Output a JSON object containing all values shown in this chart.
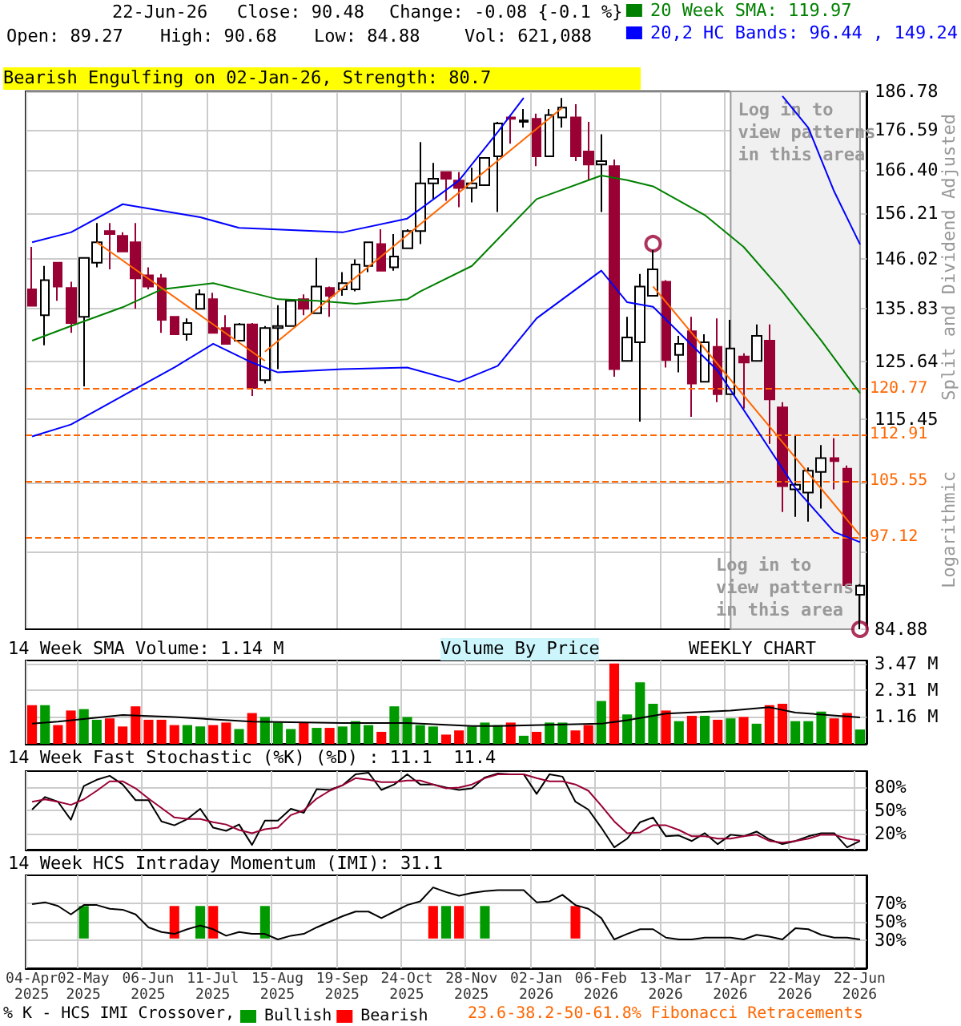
{
  "chart_data": [
    {
      "type": "candlestick",
      "ylabel": "Split and Dividend Adjusted",
      "log": true,
      "grid": true,
      "tick_labels": "y",
      "legend": "top right",
      "annotations": [
        "22-Jun-26",
        "Close: 90.48",
        "Change: -0.08 {-0.1 %}",
        "Open: 89.27",
        "High: 90.68",
        "Low: 84.88",
        "Vol: 621,088",
        "Bearish Engulfing on 02-Jan-26, Strength: 80.7",
        "Log in to\nview patterns\nin this area",
        "Logarithmic"
      ],
      "categories": [
        "04-Apr\n2025",
        null,
        null,
        null,
        "02-May\n2025",
        null,
        null,
        null,
        null,
        "06-Jun\n2025",
        null,
        null,
        null,
        null,
        "11-Jul\n2025",
        null,
        null,
        null,
        null,
        "15-Aug\n2025",
        null,
        null,
        null,
        null,
        "19-Sep\n2025",
        null,
        null,
        null,
        null,
        "24-Oct\n2025",
        null,
        null,
        null,
        null,
        "28-Nov\n2025",
        null,
        null,
        null,
        null,
        "02-Jan\n2026",
        null,
        null,
        null,
        null,
        "06-Feb\n2026",
        null,
        null,
        null,
        null,
        "13-Mar\n2026",
        null,
        null,
        null,
        null,
        "17-Apr\n2026",
        null,
        null,
        null,
        null,
        "22-May\n2026",
        null,
        null,
        null,
        null,
        "22-Jun\n2026"
      ],
      "ylim": [
        84.88,
        186.78
      ],
      "yticks": [
        186.78,
        176.59,
        {
          "value": 166.4,
          "label": "166.40"
        },
        156.21,
        146.02,
        135.83,
        125.64,
        115.45,
        {
          "value": 105.26,
          "label": null
        },
        {
          "value": 95.07,
          "label": null
        },
        84.88
      ],
      "ref_lines": [
        {
          "axis": "y",
          "value": 120.77,
          "label": "120.77",
          "color": "#ff6600",
          "line_style": "dashed"
        },
        {
          "axis": "y",
          "value": 112.91,
          "label": "112.91",
          "color": "#ff6600",
          "line_style": "dashed"
        },
        {
          "axis": "y",
          "value": 105.55,
          "label": "105.55",
          "color": "#ff6600",
          "line_style": "dashed"
        },
        {
          "axis": "y",
          "value": 97.12,
          "label": "97.12",
          "color": "#ff6600",
          "line_style": "dashed"
        }
      ],
      "bands": [
        {
          "axis": "x",
          "from": "17-Apr\n2026",
          "to": "22-Jun\n2026",
          "label": "Log in to\nview patterns\nin this area",
          "color": "#f0f0f0"
        }
      ],
      "series": [
        {
          "colors": [
            "#990033",
            "#ffffff",
            "#990033",
            "#990033",
            "#ffffff",
            "#ffffff",
            "#990033",
            "#990033",
            "#990033",
            "#990033",
            "#990033",
            "#990033",
            "#ffffff",
            "#ffffff",
            "#990033",
            "#990033",
            "#ffffff",
            "#990033",
            "#ffffff",
            "#ffffff",
            "#ffffff",
            "#990033",
            "#ffffff",
            "#990033",
            "#ffffff",
            "#ffffff",
            "#ffffff",
            "#990033",
            "#ffffff",
            "#ffffff",
            "#ffffff",
            "#ffffff",
            "#990033",
            "#990033",
            "#ffffff",
            "#ffffff",
            "#ffffff",
            "#990033",
            "#ffffff",
            "#990033",
            "#ffffff",
            "#ffffff",
            "#990033",
            "#990033",
            "#ffffff",
            "#990033",
            "#ffffff",
            "#ffffff",
            "#ffffff",
            "#990033",
            "#ffffff",
            "#990033",
            "#ffffff",
            "#990033",
            "#ffffff",
            "#990033",
            "#ffffff",
            "#990033",
            "#990033",
            "#ffffff",
            "#ffffff",
            "#ffffff",
            "#990033",
            "#990033",
            "#ffffff"
          ],
          "ohlc": [
            [
              139.7,
              148.7,
              136.4,
              136.4
            ],
            [
              134.5,
              144.6,
              128.7,
              141.6
            ],
            [
              145.3,
              145.3,
              137.4,
              140.3
            ],
            [
              140.0,
              141.3,
              131.1,
              133.0
            ],
            [
              134.2,
              146.3,
              121.2,
              146.3
            ],
            [
              145.3,
              154.0,
              144.3,
              149.7
            ],
            [
              152.2,
              154.0,
              143.9,
              151.5
            ],
            [
              151.1,
              151.9,
              147.7,
              147.7
            ],
            [
              149.7,
              154.0,
              135.8,
              142.0
            ],
            [
              142.6,
              144.3,
              139.7,
              140.3
            ],
            [
              142.0,
              142.9,
              131.1,
              133.6
            ],
            [
              134.2,
              134.2,
              130.8,
              130.8
            ],
            [
              130.8,
              133.9,
              129.6,
              133.0
            ],
            [
              135.8,
              139.7,
              135.8,
              138.7
            ],
            [
              137.7,
              139.0,
              131.1,
              131.1
            ],
            [
              132.0,
              134.5,
              129.0,
              129.0
            ],
            [
              129.6,
              133.0,
              129.6,
              132.7
            ],
            [
              132.7,
              133.0,
              119.5,
              120.9
            ],
            [
              122.3,
              132.4,
              121.7,
              132.0
            ],
            [
              132.0,
              136.5,
              124.3,
              132.4
            ],
            [
              132.4,
              137.7,
              132.4,
              137.4
            ],
            [
              137.7,
              138.7,
              134.5,
              135.8
            ],
            [
              134.9,
              146.3,
              134.9,
              140.3
            ],
            [
              140.0,
              140.3,
              134.2,
              138.4
            ],
            [
              139.7,
              143.3,
              138.4,
              141.0
            ],
            [
              139.7,
              146.0,
              139.3,
              144.9
            ],
            [
              144.6,
              149.7,
              143.3,
              149.7
            ],
            [
              149.3,
              152.6,
              143.6,
              143.6
            ],
            [
              144.3,
              151.5,
              143.6,
              146.6
            ],
            [
              148.4,
              152.6,
              148.4,
              152.2
            ],
            [
              152.2,
              173.4,
              149.3,
              163.2
            ],
            [
              163.2,
              168.2,
              159.5,
              164.3
            ],
            [
              165.9,
              165.9,
              159.1,
              164.3
            ],
            [
              163.9,
              165.9,
              157.6,
              162.1
            ],
            [
              162.1,
              167.0,
              158.7,
              163.2
            ],
            [
              162.8,
              169.4,
              162.8,
              169.4
            ],
            [
              169.8,
              178.6,
              156.5,
              178.2
            ],
            [
              179.8,
              180.4,
              173.0,
              179.4
            ],
            [
              178.6,
              182.0,
              177.1,
              179.0
            ],
            [
              179.4,
              180.8,
              167.4,
              169.8
            ],
            [
              169.8,
              182.0,
              169.8,
              180.4
            ],
            [
              179.8,
              185.0,
              177.1,
              182.4
            ],
            [
              179.8,
              183.3,
              168.6,
              169.8
            ],
            [
              171.0,
              178.6,
              164.0,
              167.8
            ],
            [
              167.8,
              175.4,
              156.5,
              168.6
            ],
            [
              167.4,
              169.0,
              122.9,
              124.3
            ],
            [
              125.8,
              134.2,
              125.8,
              130.2
            ],
            [
              129.3,
              142.9,
              115.1,
              140.3
            ],
            [
              138.4,
              148.0,
              138.4,
              143.9
            ],
            [
              141.3,
              141.6,
              124.6,
              126.0
            ],
            [
              126.9,
              130.5,
              123.7,
              129.0
            ],
            [
              131.4,
              134.2,
              115.9,
              121.7
            ],
            [
              122.0,
              130.8,
              122.0,
              129.3
            ],
            [
              128.4,
              133.9,
              118.4,
              119.8
            ],
            [
              119.8,
              133.6,
              119.8,
              128.1
            ],
            [
              126.6,
              127.2,
              117.3,
              125.5
            ],
            [
              125.8,
              132.7,
              125.8,
              130.5
            ],
            [
              129.6,
              132.7,
              111.4,
              118.9
            ],
            [
              117.5,
              118.4,
              100.8,
              104.7
            ],
            [
              104.2,
              112.8,
              100.1,
              104.9
            ],
            [
              103.7,
              107.6,
              99.4,
              107.1
            ],
            [
              106.9,
              111.2,
              101.3,
              109.1
            ],
            [
              109.1,
              112.3,
              104.2,
              108.6
            ],
            [
              107.4,
              107.9,
              90.56,
              90.56
            ],
            [
              89.27,
              90.68,
              84.88,
              90.48
            ]
          ]
        },
        {
          "type": "line",
          "name": "20 Week SMA: 119.97",
          "color": "#008000",
          "values": [
            129.6,
            null,
            null,
            132.4,
            null,
            null,
            null,
            136.1,
            null,
            null,
            139.7,
            null,
            null,
            null,
            141.0,
            null,
            null,
            139.0,
            null,
            137.7,
            null,
            null,
            137.4,
            null,
            null,
            136.8,
            null,
            null,
            null,
            137.7,
            139.3,
            null,
            null,
            null,
            144.6,
            null,
            null,
            null,
            null,
            159.5,
            null,
            null,
            null,
            null,
            165.1,
            null,
            164.0,
            null,
            162.5,
            null,
            null,
            null,
            155.8,
            null,
            null,
            148.7,
            null,
            null,
            139.3,
            null,
            null,
            129.6,
            null,
            null,
            119.97
          ]
        },
        {
          "type": "line",
          "color": "#0000ff",
          "values": [
            149.7,
            null,
            null,
            151.9,
            null,
            null,
            null,
            158.3,
            null,
            null,
            null,
            null,
            null,
            155.3,
            null,
            null,
            152.9,
            null,
            null,
            null,
            null,
            null,
            null,
            null,
            151.9,
            null,
            null,
            null,
            null,
            155.0,
            null,
            null,
            null,
            163.9,
            null,
            null,
            176.0,
            null,
            185.0,
            null,
            null,
            null,
            null,
            null,
            null,
            null,
            null,
            null,
            null,
            null,
            null,
            null,
            null,
            null,
            null,
            null,
            null,
            null,
            null,
            null,
            null,
            null,
            null,
            null,
            null
          ]
        },
        {
          "type": "line",
          "color": "#0000ff",
          "values": [
            null,
            null,
            null,
            null,
            null,
            null,
            null,
            null,
            null,
            null,
            null,
            null,
            null,
            null,
            null,
            null,
            null,
            null,
            null,
            null,
            null,
            null,
            null,
            null,
            null,
            null,
            null,
            null,
            null,
            null,
            null,
            null,
            null,
            null,
            null,
            null,
            null,
            null,
            null,
            null,
            null,
            null,
            null,
            null,
            null,
            null,
            null,
            null,
            null,
            null,
            null,
            null,
            null,
            null,
            null,
            null,
            null,
            null,
            185.5,
            null,
            177.1,
            169.0,
            161.3,
            null,
            149.24
          ]
        },
        {
          "type": "line",
          "name": "20,2 HC Bands: 96.44 , 149.24",
          "color": "#0000ff",
          "values": [
            112.6,
            null,
            null,
            114.6,
            null,
            null,
            null,
            119.5,
            null,
            null,
            null,
            124.6,
            null,
            null,
            129.0,
            null,
            null,
            125.5,
            null,
            123.7,
            null,
            null,
            null,
            null,
            124.3,
            null,
            null,
            null,
            null,
            124.6,
            null,
            null,
            null,
            122.0,
            null,
            null,
            124.9,
            null,
            null,
            133.9,
            null,
            null,
            null,
            null,
            143.6,
            null,
            137.1,
            null,
            136.2,
            null,
            null,
            null,
            null,
            124.0,
            null,
            null,
            113.8,
            null,
            null,
            104.4,
            null,
            null,
            97.9,
            null,
            96.44
          ]
        },
        {
          "type": "line",
          "color": "#ff6600",
          "values": [
            null,
            null,
            null,
            null,
            null,
            149.7,
            null,
            null,
            null,
            null,
            null,
            null,
            null,
            null,
            null,
            null,
            null,
            null,
            125.8,
            null,
            null,
            null,
            null,
            null,
            null,
            null,
            null,
            null,
            null,
            null,
            null,
            null,
            null,
            null,
            null,
            null,
            null,
            null,
            null,
            null,
            null,
            null,
            null,
            null,
            null,
            null,
            null,
            null,
            null,
            null,
            null,
            null,
            null,
            null,
            null,
            null,
            null,
            null,
            null,
            null,
            null,
            null,
            null,
            null,
            null
          ]
        },
        {
          "type": "line",
          "color": "#ff6600",
          "values": [
            null,
            null,
            null,
            null,
            null,
            null,
            null,
            null,
            null,
            null,
            null,
            null,
            null,
            null,
            null,
            null,
            null,
            null,
            127.5,
            null,
            null,
            null,
            null,
            null,
            null,
            null,
            null,
            null,
            null,
            null,
            null,
            null,
            null,
            null,
            null,
            null,
            null,
            null,
            null,
            null,
            null,
            182.4,
            null,
            null,
            null,
            null,
            null,
            null,
            null,
            null,
            null,
            null,
            null,
            null,
            null,
            null,
            null,
            null,
            null,
            null,
            null,
            null,
            null,
            null,
            null
          ]
        },
        {
          "type": "line",
          "color": "#ff6600",
          "values": [
            null,
            null,
            null,
            null,
            null,
            null,
            null,
            null,
            null,
            null,
            null,
            null,
            null,
            null,
            null,
            null,
            null,
            null,
            null,
            null,
            null,
            null,
            null,
            null,
            null,
            null,
            null,
            null,
            null,
            null,
            null,
            null,
            null,
            null,
            null,
            null,
            null,
            null,
            null,
            null,
            null,
            null,
            null,
            null,
            null,
            null,
            null,
            null,
            140.3,
            null,
            null,
            null,
            null,
            null,
            null,
            null,
            null,
            null,
            null,
            null,
            null,
            null,
            null,
            null,
            97.4
          ]
        },
        {
          "type": "scatter",
          "color": "#990033",
          "marker": "circle",
          "values": [
            null,
            null,
            null,
            null,
            null,
            null,
            null,
            null,
            null,
            null,
            null,
            null,
            null,
            null,
            null,
            null,
            null,
            null,
            null,
            null,
            null,
            null,
            null,
            null,
            null,
            null,
            null,
            null,
            null,
            null,
            null,
            null,
            null,
            null,
            null,
            null,
            null,
            null,
            null,
            null,
            null,
            null,
            null,
            null,
            null,
            null,
            null,
            null,
            149.4,
            null,
            null,
            null,
            null,
            null,
            null,
            null,
            null,
            null,
            null,
            null,
            null,
            null,
            null,
            null,
            84.88
          ]
        }
      ]
    },
    {
      "type": "bar",
      "title": "14 Week SMA Volume: 1.14 M",
      "annotations": [
        "Volume By Price",
        "WEEKLY CHART"
      ],
      "grid": true,
      "tick_labels": "y",
      "categories": [
        "04-Apr\n2025",
        null,
        null,
        null,
        "02-May\n2025",
        null,
        null,
        null,
        null,
        "06-Jun\n2025",
        null,
        null,
        null,
        null,
        "11-Jul\n2025",
        null,
        null,
        null,
        null,
        "15-Aug\n2025",
        null,
        null,
        null,
        null,
        "19-Sep\n2025",
        null,
        null,
        null,
        null,
        "24-Oct\n2025",
        null,
        null,
        null,
        null,
        "28-Nov\n2025",
        null,
        null,
        null,
        null,
        "02-Jan\n2026",
        null,
        null,
        null,
        null,
        "06-Feb\n2026",
        null,
        null,
        null,
        null,
        "13-Mar\n2026",
        null,
        null,
        null,
        null,
        "17-Apr\n2026",
        null,
        null,
        null,
        null,
        "22-May\n2026",
        null,
        null,
        null,
        null,
        "22-Jun\n2026"
      ],
      "ylim": [
        0,
        3.6
      ],
      "yticks": [
        {
          "value": 1.16,
          "label": "1.16 M"
        },
        {
          "value": 2.31,
          "label": "2.31 M"
        },
        {
          "value": 3.47,
          "label": "3.47 M"
        }
      ],
      "series": [
        {
          "values": [
            1.67,
            1.67,
            0.81,
            1.44,
            1.5,
            1.04,
            1.1,
            0.75,
            1.62,
            1.04,
            1.04,
            0.81,
            0.81,
            0.75,
            0.81,
            0.92,
            0.64,
            1.33,
            1.16,
            0.92,
            0.64,
            0.92,
            0.69,
            0.69,
            0.75,
            0.98,
            0.81,
            0.52,
            1.62,
            1.16,
            0.81,
            0.75,
            0.4,
            0.58,
            0.75,
            0.92,
            0.81,
            0.92,
            0.35,
            0.52,
            0.92,
            0.92,
            0.58,
            0.81,
            1.85,
            3.47,
            1.27,
            2.66,
            1.73,
            1.44,
            0.98,
            1.21,
            1.21,
            1.04,
            1.1,
            1.16,
            0.87,
            1.67,
            1.73,
            0.98,
            0.98,
            1.39,
            1.1,
            1.33,
            0.62
          ],
          "colors": [
            "#ff0000",
            "#009900",
            "#ff0000",
            "#ff0000",
            "#009900",
            "#009900",
            "#ff0000",
            "#ff0000",
            "#ff0000",
            "#ff0000",
            "#ff0000",
            "#ff0000",
            "#009900",
            "#009900",
            "#ff0000",
            "#ff0000",
            "#009900",
            "#ff0000",
            "#009900",
            "#009900",
            "#009900",
            "#ff0000",
            "#009900",
            "#ff0000",
            "#009900",
            "#009900",
            "#009900",
            "#ff0000",
            "#009900",
            "#009900",
            "#009900",
            "#009900",
            "#ff0000",
            "#ff0000",
            "#009900",
            "#009900",
            "#009900",
            "#ff0000",
            "#009900",
            "#ff0000",
            "#009900",
            "#009900",
            "#ff0000",
            "#ff0000",
            "#009900",
            "#ff0000",
            "#009900",
            "#009900",
            "#009900",
            "#ff0000",
            "#009900",
            "#ff0000",
            "#009900",
            "#ff0000",
            "#009900",
            "#ff0000",
            "#009900",
            "#ff0000",
            "#ff0000",
            "#009900",
            "#009900",
            "#009900",
            "#ff0000",
            "#ff0000",
            "#009900"
          ]
        },
        {
          "type": "line",
          "color": "#000000",
          "values": [
            0.87,
            null,
            0.96,
            null,
            null,
            null,
            null,
            1.25,
            null,
            null,
            null,
            1.16,
            null,
            null,
            null,
            null,
            null,
            0.96,
            null,
            null,
            null,
            null,
            null,
            null,
            0.9,
            null,
            null,
            null,
            null,
            0.9,
            null,
            null,
            null,
            null,
            0.77,
            null,
            0.77,
            null,
            null,
            null,
            null,
            null,
            null,
            null,
            0.87,
            null,
            1.02,
            null,
            null,
            1.31,
            null,
            null,
            null,
            null,
            1.44,
            null,
            null,
            1.58,
            null,
            1.35,
            null,
            null,
            null,
            null,
            1.14
          ]
        }
      ]
    },
    {
      "type": "line",
      "title": "14 Week Fast Stochastic (%K) (%D) : 11.1  11.4",
      "grid": true,
      "tick_labels": "y",
      "categories": [
        "04-Apr\n2025",
        null,
        null,
        null,
        "02-May\n2025",
        null,
        null,
        null,
        null,
        "06-Jun\n2025",
        null,
        null,
        null,
        null,
        "11-Jul\n2025",
        null,
        null,
        null,
        null,
        "15-Aug\n2025",
        null,
        null,
        null,
        null,
        "19-Sep\n2025",
        null,
        null,
        null,
        null,
        "24-Oct\n2025",
        null,
        null,
        null,
        null,
        "28-Nov\n2025",
        null,
        null,
        null,
        null,
        "02-Jan\n2026",
        null,
        null,
        null,
        null,
        "06-Feb\n2026",
        null,
        null,
        null,
        null,
        "13-Mar\n2026",
        null,
        null,
        null,
        null,
        "17-Apr\n2026",
        null,
        null,
        null,
        null,
        "22-May\n2026",
        null,
        null,
        null,
        null,
        "22-Jun\n2026"
      ],
      "ylim": [
        0,
        100
      ],
      "yticks": [
        {
          "value": 20,
          "label": "20%"
        },
        {
          "value": 50,
          "label": "50%"
        },
        {
          "value": 80,
          "label": "80%"
        }
      ],
      "series": [
        {
          "color": "#000000",
          "values": [
            51,
            67,
            61,
            38,
            81,
            89,
            94,
            83,
            63,
            63,
            36,
            31,
            39,
            52,
            28,
            24,
            32,
            6,
            37,
            37,
            52,
            47,
            77,
            76,
            82,
            96,
            98,
            76,
            83,
            96,
            83,
            83,
            79,
            76,
            78,
            92,
            97,
            96,
            96,
            71,
            96,
            93,
            61,
            51,
            28,
            3,
            14,
            35,
            41,
            17,
            18,
            11,
            21,
            7,
            19,
            17,
            23,
            13,
            7,
            11,
            17,
            21,
            21,
            3,
            11.1
          ]
        },
        {
          "color": "#990033",
          "values": [
            61,
            64,
            61,
            57,
            64,
            75,
            87,
            87,
            78,
            65,
            53,
            41,
            39,
            39,
            35,
            32,
            25,
            21,
            26,
            28,
            44,
            50,
            65,
            75,
            82,
            91,
            89,
            86,
            86,
            88,
            88,
            83,
            78,
            79,
            83,
            91,
            96,
            96,
            96,
            91,
            87,
            87,
            83,
            75,
            56,
            36,
            21,
            22,
            31,
            31,
            25,
            17,
            17,
            14,
            14,
            17,
            19,
            11,
            9,
            11,
            14,
            19,
            19,
            14,
            11.4
          ]
        }
      ]
    },
    {
      "type": "line",
      "title": "14 Week HCS Intraday Momentum (IMI): 31.1",
      "grid": true,
      "legend": "bottom",
      "annotations": [
        "% K - HCS IMI Crossover,",
        "23.6-38.2-50-61.8% Fibonacci Retracements"
      ],
      "categories": [
        "04-Apr\n2025",
        null,
        null,
        null,
        "02-May\n2025",
        null,
        null,
        null,
        null,
        "06-Jun\n2025",
        null,
        null,
        null,
        null,
        "11-Jul\n2025",
        null,
        null,
        null,
        null,
        "15-Aug\n2025",
        null,
        null,
        null,
        null,
        "19-Sep\n2025",
        null,
        null,
        null,
        null,
        "24-Oct\n2025",
        null,
        null,
        null,
        null,
        "28-Nov\n2025",
        null,
        null,
        null,
        null,
        "02-Jan\n2026",
        null,
        null,
        null,
        null,
        "06-Feb\n2026",
        null,
        null,
        null,
        null,
        "13-Mar\n2026",
        null,
        null,
        null,
        null,
        "17-Apr\n2026",
        null,
        null,
        null,
        null,
        "22-May\n2026",
        null,
        null,
        null,
        null,
        "22-Jun\n2026"
      ],
      "ylim": [
        0,
        100
      ],
      "yticks": [
        {
          "value": 30,
          "label": "30%"
        },
        {
          "value": 50,
          "label": "50%"
        },
        {
          "value": 70,
          "label": "70%"
        }
      ],
      "series": [
        {
          "color": "#000000",
          "values": [
            69,
            71,
            67,
            58,
            68,
            68,
            64,
            63,
            58,
            44,
            39,
            37,
            42,
            46,
            42,
            35,
            39,
            37,
            37,
            31,
            35,
            37,
            44,
            50,
            56,
            61,
            61,
            54,
            61,
            68,
            72,
            87,
            82,
            78,
            81,
            83,
            84,
            84,
            84,
            71,
            72,
            79,
            68,
            64,
            54,
            31,
            37,
            42,
            42,
            33,
            31,
            31,
            33,
            33,
            33,
            31,
            36,
            34,
            31,
            43,
            42,
            36,
            33,
            33,
            31.1
          ]
        },
        {
          "type": "bar",
          "name": "Bullish",
          "color": "#009900",
          "values": [
            null,
            null,
            null,
            null,
            35,
            null,
            null,
            null,
            null,
            null,
            null,
            null,
            null,
            35,
            null,
            null,
            null,
            null,
            35,
            null,
            null,
            null,
            null,
            null,
            null,
            null,
            null,
            null,
            null,
            null,
            null,
            null,
            35,
            null,
            null,
            35,
            null,
            null,
            null,
            null,
            null,
            null,
            null,
            null,
            null,
            null,
            null,
            null,
            null,
            null,
            null,
            null,
            null,
            null,
            null,
            null,
            null,
            null,
            null,
            null,
            null,
            null,
            null,
            null,
            null
          ],
          "base": [
            null,
            null,
            null,
            null,
            32,
            null,
            null,
            null,
            null,
            null,
            null,
            null,
            null,
            32,
            null,
            null,
            null,
            null,
            32,
            null,
            null,
            null,
            null,
            null,
            null,
            null,
            null,
            null,
            null,
            null,
            null,
            null,
            32,
            null,
            null,
            32,
            null,
            null,
            null,
            null,
            null,
            null,
            null,
            null,
            null,
            null,
            null,
            null,
            null,
            null,
            null,
            null,
            null,
            null,
            null,
            null,
            null,
            null,
            null,
            null,
            null,
            null,
            null,
            null,
            null
          ]
        },
        {
          "type": "bar",
          "name": "Bearish",
          "color": "#ff0000",
          "values": [
            null,
            null,
            null,
            null,
            null,
            null,
            null,
            null,
            null,
            null,
            null,
            35,
            null,
            null,
            35,
            null,
            null,
            null,
            null,
            null,
            null,
            null,
            null,
            null,
            null,
            null,
            null,
            null,
            null,
            null,
            null,
            35,
            null,
            35,
            null,
            null,
            null,
            null,
            null,
            null,
            null,
            null,
            35,
            null,
            null,
            null,
            null,
            null,
            null,
            null,
            null,
            null,
            null,
            null,
            null,
            null,
            null,
            null,
            null,
            null,
            null,
            null,
            null,
            null,
            null
          ],
          "base": [
            null,
            null,
            null,
            null,
            null,
            null,
            null,
            null,
            null,
            null,
            null,
            32,
            null,
            null,
            32,
            null,
            null,
            null,
            null,
            null,
            null,
            null,
            null,
            null,
            null,
            null,
            null,
            null,
            null,
            null,
            null,
            32,
            null,
            32,
            null,
            null,
            null,
            null,
            null,
            null,
            null,
            null,
            32,
            null,
            null,
            null,
            null,
            null,
            null,
            null,
            null,
            null,
            null,
            null,
            null,
            null,
            null,
            null,
            null,
            null,
            null,
            null,
            null,
            null,
            null
          ]
        }
      ]
    }
  ]
}
